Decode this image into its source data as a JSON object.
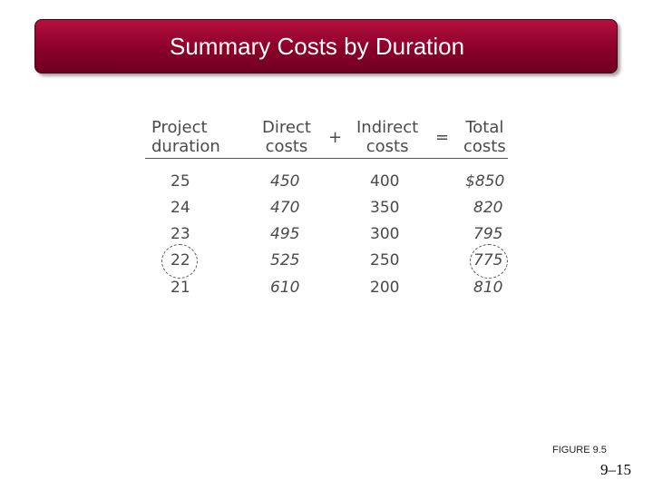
{
  "slide": {
    "title": "Summary Costs by Duration",
    "figure_label": "FIGURE 9.5",
    "page_number": "9–15"
  },
  "table": {
    "headers": {
      "duration": [
        "Project",
        "duration"
      ],
      "direct": [
        "Direct",
        "costs"
      ],
      "plus": "+",
      "indirect": [
        "Indirect",
        "costs"
      ],
      "equals": "=",
      "total": [
        "Total",
        "costs"
      ]
    },
    "rows": [
      {
        "duration": "25",
        "direct": "450",
        "indirect": "400",
        "total": "$850"
      },
      {
        "duration": "24",
        "direct": "470",
        "indirect": "350",
        "total": "820"
      },
      {
        "duration": "23",
        "direct": "495",
        "indirect": "300",
        "total": "795"
      },
      {
        "duration": "22",
        "direct": "525",
        "indirect": "250",
        "total": "775"
      },
      {
        "duration": "21",
        "direct": "610",
        "indirect": "200",
        "total": "810"
      }
    ]
  }
}
